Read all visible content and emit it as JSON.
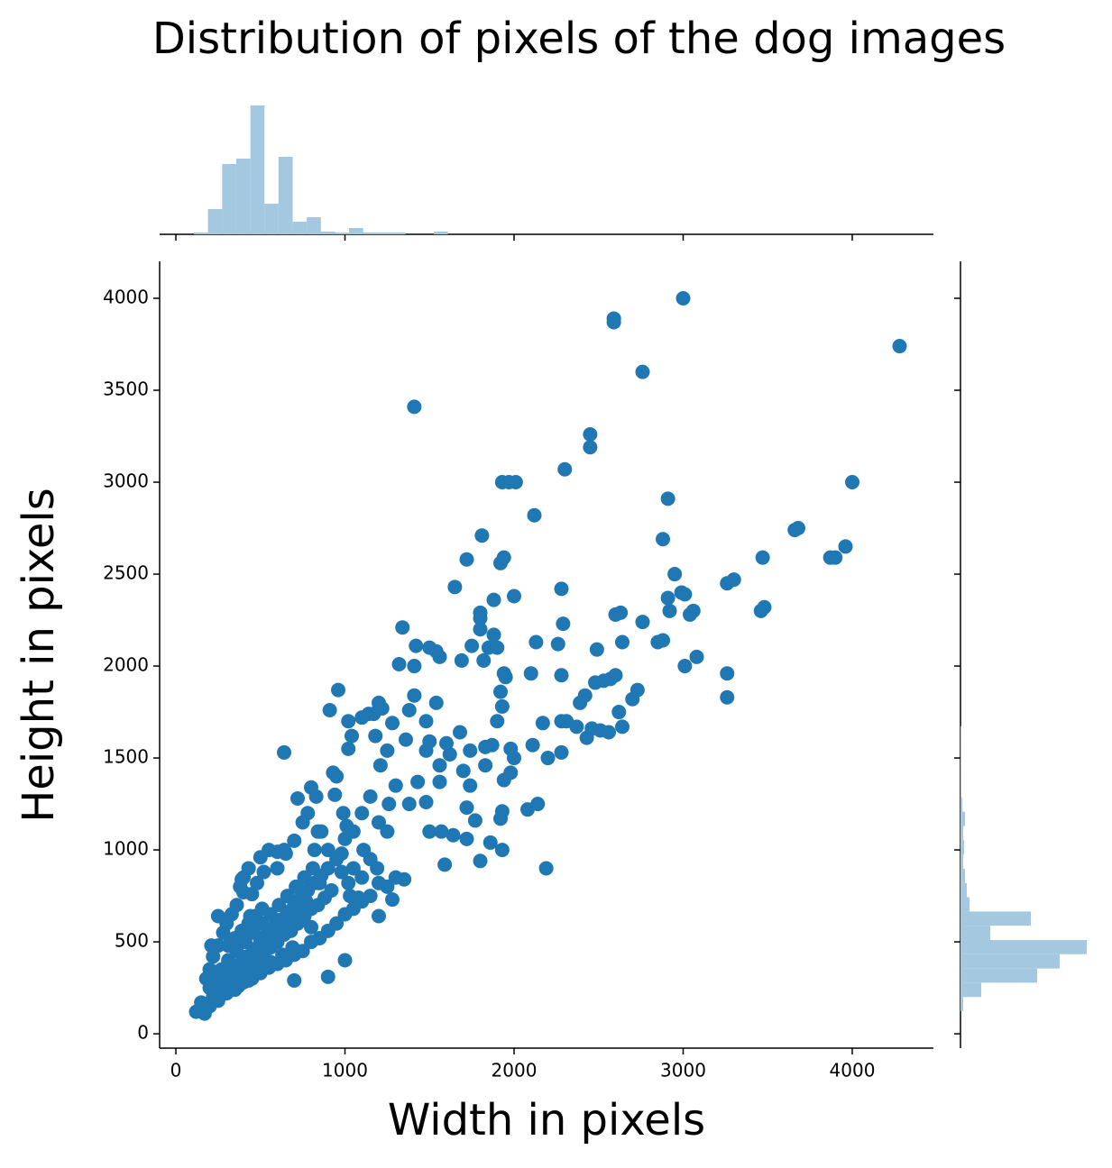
{
  "chart_data": [
    {
      "type": "scatter",
      "title": "Distribution of pixels of the dog images",
      "xlabel": "Width in pixels",
      "ylabel": "Height in pixels",
      "color": "#1f77b4",
      "xlim": [
        -96,
        4480
      ],
      "ylim": [
        -78,
        4201
      ],
      "xticks": [
        0,
        1000,
        2000,
        3000,
        4000
      ],
      "yticks": [
        0,
        500,
        1000,
        1500,
        2000,
        2500,
        3000,
        3500,
        4000
      ],
      "x": [
        3000,
        2590,
        2590,
        4280,
        2760,
        1410,
        2450,
        2450,
        2300,
        1930,
        1970,
        2010,
        4000,
        2910,
        2120,
        1810,
        3660,
        3680,
        2880,
        3960,
        3470,
        3870,
        3900,
        1720,
        1940,
        1920,
        2950,
        3260,
        3300,
        1650,
        2280,
        2000,
        1880,
        2910,
        2990,
        3010,
        3480,
        3460,
        3060,
        3040,
        2600,
        2630,
        1800,
        1800,
        2920,
        2760,
        2290,
        1340,
        1800,
        1880,
        2850,
        2880,
        2640,
        2130,
        2260,
        1750,
        1850,
        1420,
        1500,
        1540,
        1560,
        2490,
        1900,
        1690,
        1320,
        1410,
        1820,
        3080,
        3010,
        2100,
        1940,
        1950,
        2280,
        2600,
        2570,
        2530,
        2480,
        3260,
        960,
        1410,
        1920,
        2730,
        2420,
        2390,
        3260,
        1930,
        1540,
        2700,
        1200,
        1220,
        910,
        1380,
        2620,
        1100,
        1140,
        1170,
        1020,
        1280,
        1480,
        2280,
        2310,
        2170,
        2370,
        2460,
        2640,
        2510,
        1900,
        1680,
        1040,
        1180,
        2430,
        2560,
        1360,
        1500,
        1600,
        2110,
        1980,
        1870,
        1830,
        640,
        1020,
        1250,
        1480,
        1740,
        1620,
        2280,
        2200,
        2000,
        1560,
        1830,
        1980,
        1700,
        1210,
        1430,
        1560,
        1300,
        1940,
        1740,
        830,
        1150,
        1260,
        1480,
        1380,
        1720,
        1930,
        2080,
        2140,
        1770,
        1920,
        1010,
        1500,
        1570,
        1640,
        1720,
        1860,
        1930,
        1590,
        1800,
        2190,
        1350,
        1200,
        1080,
        840,
        720,
        800,
        930,
        950,
        940,
        600,
        990,
        1110,
        1190,
        1280,
        1200,
        1030,
        900,
        1000,
        800,
        120,
        150,
        170,
        200,
        220,
        250,
        260,
        280,
        300,
        320,
        340,
        350,
        380,
        400,
        420,
        440,
        460,
        480,
        500,
        520,
        540,
        560,
        580,
        600,
        620,
        640,
        660,
        680,
        700,
        720,
        740,
        760,
        780,
        800,
        820,
        840,
        860,
        880,
        900,
        920,
        180,
        200,
        220,
        250,
        280,
        300,
        330,
        360,
        380,
        400,
        430,
        450,
        480,
        500,
        520,
        550,
        600,
        650,
        700,
        750,
        780,
        820,
        860,
        900,
        950,
        980,
        1020,
        1050,
        1100,
        1150,
        300,
        350,
        400,
        450,
        500,
        550,
        600,
        650,
        700,
        750,
        800,
        850,
        900,
        950,
        1000,
        1050,
        1100,
        1150,
        1250,
        1300,
        200,
        240,
        270,
        310,
        360,
        410,
        460,
        510,
        560,
        610,
        660,
        710,
        760,
        810,
        310,
        350,
        390,
        430,
        470,
        510,
        370,
        430,
        490,
        560,
        630,
        690,
        260,
        290,
        330,
        370,
        410,
        450,
        490,
        530,
        570,
        610,
        650,
        690,
        730,
        770,
        440,
        390,
        640,
        400,
        210,
        250,
        700,
        850,
        980,
        1050,
        1100,
        1000,
        1200,
        1250
      ],
      "values": [
        4000,
        3890,
        3870,
        3740,
        3600,
        3410,
        3260,
        3190,
        3070,
        3000,
        3000,
        3000,
        3000,
        2910,
        2820,
        2710,
        2740,
        2750,
        2690,
        2650,
        2590,
        2590,
        2590,
        2580,
        2590,
        2560,
        2500,
        2450,
        2470,
        2430,
        2420,
        2380,
        2360,
        2370,
        2400,
        2390,
        2320,
        2300,
        2300,
        2280,
        2280,
        2290,
        2290,
        2260,
        2300,
        2240,
        2230,
        2210,
        2200,
        2170,
        2130,
        2140,
        2130,
        2130,
        2120,
        2110,
        2100,
        2110,
        2100,
        2080,
        2050,
        2090,
        2100,
        2030,
        2010,
        2000,
        2030,
        2050,
        2000,
        1960,
        1960,
        1940,
        1950,
        1950,
        1930,
        1920,
        1910,
        1960,
        1870,
        1840,
        1860,
        1870,
        1840,
        1800,
        1830,
        1780,
        1800,
        1820,
        1800,
        1770,
        1760,
        1760,
        1750,
        1720,
        1740,
        1740,
        1700,
        1690,
        1700,
        1700,
        1700,
        1690,
        1670,
        1660,
        1670,
        1650,
        1700,
        1640,
        1620,
        1620,
        1610,
        1640,
        1600,
        1590,
        1580,
        1570,
        1550,
        1570,
        1560,
        1530,
        1550,
        1540,
        1540,
        1540,
        1520,
        1530,
        1500,
        1500,
        1460,
        1460,
        1420,
        1430,
        1460,
        1370,
        1370,
        1350,
        1380,
        1350,
        1290,
        1290,
        1250,
        1260,
        1250,
        1230,
        1210,
        1220,
        1250,
        1160,
        1170,
        1130,
        1100,
        1100,
        1080,
        1060,
        1040,
        1000,
        920,
        940,
        900,
        840,
        820,
        740,
        1100,
        1280,
        1340,
        1420,
        1400,
        1300,
        990,
        1200,
        1000,
        900,
        730,
        640,
        750,
        310,
        400,
        580,
        120,
        170,
        110,
        150,
        200,
        180,
        260,
        230,
        300,
        250,
        340,
        290,
        380,
        330,
        420,
        360,
        460,
        400,
        500,
        420,
        540,
        470,
        580,
        500,
        620,
        540,
        660,
        560,
        700,
        600,
        740,
        640,
        780,
        680,
        820,
        700,
        860,
        740,
        900,
        780,
        300,
        350,
        420,
        480,
        550,
        600,
        650,
        700,
        800,
        850,
        900,
        760,
        820,
        960,
        880,
        1000,
        900,
        980,
        1050,
        1150,
        1200,
        1000,
        1100,
        1000,
        950,
        880,
        820,
        900,
        850,
        950,
        220,
        240,
        280,
        300,
        330,
        360,
        380,
        400,
        430,
        450,
        500,
        520,
        560,
        600,
        650,
        680,
        720,
        750,
        800,
        850,
        250,
        300,
        350,
        400,
        450,
        500,
        550,
        600,
        650,
        700,
        750,
        800,
        850,
        900,
        480,
        520,
        560,
        600,
        640,
        680,
        260,
        290,
        350,
        390,
        430,
        470,
        210,
        270,
        310,
        330,
        380,
        420,
        450,
        480,
        520,
        560,
        600,
        640,
        680,
        720,
        640,
        840,
        1000,
        770,
        480,
        640,
        290,
        820,
        980,
        1100,
        1200,
        1060,
        1150,
        1100
      ]
    },
    {
      "type": "histogram",
      "orientation": "vertical",
      "color": "#a5c8e1",
      "xlim": [
        -96,
        4480
      ],
      "xticks": [
        0,
        1000,
        2000,
        3000,
        4000
      ],
      "ylim": [
        0,
        150
      ],
      "bins": [
        107,
        190,
        274,
        357,
        441,
        524,
        607,
        691,
        774,
        858,
        941,
        1024,
        1108,
        1191,
        1275,
        1358,
        1441,
        1525,
        1608,
        1692,
        1775,
        1858,
        1942,
        2025,
        2109,
        2192,
        2275,
        2359,
        2442,
        2526,
        2609,
        2692,
        2776,
        2859,
        2943,
        3026,
        3109,
        3193,
        3276,
        3360,
        3443,
        3526,
        3610,
        3693,
        3777,
        3860,
        3943,
        4027,
        4110,
        4194,
        4277
      ],
      "values": [
        2,
        28,
        78,
        84,
        143,
        34,
        86,
        14,
        19,
        3,
        2,
        7,
        2,
        2,
        2,
        0,
        0,
        3,
        0,
        0,
        0,
        0,
        0,
        0,
        0,
        0,
        0,
        0,
        0,
        0,
        0,
        0,
        0,
        0,
        0,
        0,
        0,
        0,
        0,
        0,
        0,
        0,
        0,
        0,
        0,
        0,
        0,
        0,
        0,
        0
      ]
    },
    {
      "type": "histogram",
      "orientation": "horizontal",
      "color": "#a5c8e1",
      "ylim": [
        -78,
        4201
      ],
      "yticks": [
        0,
        500,
        1000,
        1500,
        2000,
        2500,
        3000,
        3500,
        4000
      ],
      "xlim": [
        0,
        150
      ],
      "bins": [
        123,
        200,
        278,
        355,
        433,
        510,
        588,
        665,
        743,
        820,
        898,
        975,
        1053,
        1130,
        1208,
        1285,
        1363,
        1440,
        1518,
        1595,
        1673,
        1750,
        1828,
        1905,
        1983,
        2060,
        2138,
        2215,
        2293,
        2370,
        2448,
        2525,
        2603,
        2680,
        2758,
        2835,
        2913,
        2990,
        3068,
        3145,
        3223,
        3300,
        3378,
        3455,
        3533,
        3610,
        3688,
        3765,
        3843,
        3920,
        3998
      ],
      "values": [
        3,
        23,
        85,
        110,
        140,
        33,
        78,
        10,
        7,
        5,
        3,
        4,
        3,
        5,
        2,
        1,
        1,
        1,
        1,
        1,
        0,
        0,
        0,
        0,
        0,
        0,
        0,
        0,
        0,
        0,
        0,
        0,
        0,
        0,
        0,
        0,
        0,
        0,
        0,
        0,
        0,
        0,
        0,
        0,
        0,
        0,
        0,
        0,
        0,
        0
      ]
    }
  ]
}
